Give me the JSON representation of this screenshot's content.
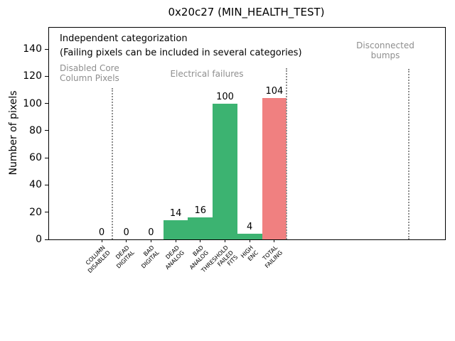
{
  "window": {
    "background": "#ffffff"
  },
  "chart_data": {
    "type": "bar",
    "title": "0x20c27 (MIN_HEALTH_TEST)",
    "xlabel": "",
    "ylabel": "Number of pixels",
    "ylim": [
      0,
      155.7
    ],
    "yticks": [
      0,
      20,
      40,
      60,
      80,
      100,
      120,
      140
    ],
    "grid": false,
    "legend": "none",
    "categories": [
      "COLUMN\nDISABLED",
      "DEAD\nDIGITAL",
      "BAD\nDIGITAL",
      "DEAD\nANALOG",
      "BAD\nANALOG",
      "THRESHOLD\nFAILED\nFITS",
      "HIGH\nENC",
      "TOTAL\nFAILING"
    ],
    "values": [
      0,
      0,
      0,
      14,
      16,
      100,
      4,
      104
    ],
    "bar_value_labels": [
      "0",
      "0",
      "0",
      "14",
      "16",
      "100",
      "4",
      "104"
    ],
    "bar_colors": [
      "#3cb371",
      "#3cb371",
      "#3cb371",
      "#3cb371",
      "#3cb371",
      "#3cb371",
      "#3cb371",
      "#f08080"
    ],
    "colors": {
      "bar_green": "#3cb371",
      "bar_red": "#f08080",
      "annotation_gray": "#8e8e8e",
      "axis_black": "#000000"
    },
    "notes": [
      "Independent categorization",
      "(Failing pixels can be included in several categories)"
    ],
    "group_labels": [
      {
        "text": "Disabled Core\nColumn Pixels",
        "align": "left",
        "x": 15,
        "y": 50
      },
      {
        "text": "Electrical failures",
        "align": "center",
        "x": 222,
        "y": 58
      },
      {
        "text": "Disconnected\nbumps",
        "align": "center",
        "x": 473,
        "y": 18
      }
    ],
    "separators": [
      {
        "x": 88,
        "y_top": 85
      },
      {
        "x": 333,
        "y_top": 57
      },
      {
        "x": 505,
        "y_top": 58
      }
    ]
  }
}
